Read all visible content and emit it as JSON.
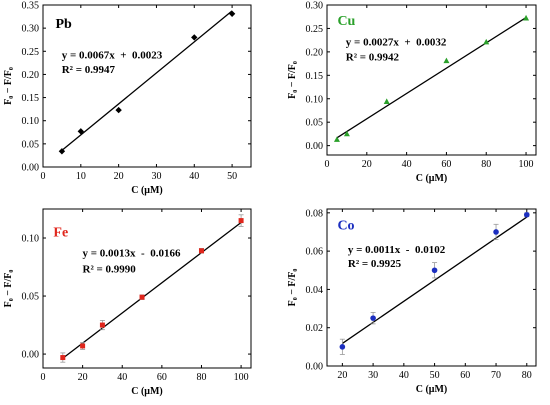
{
  "chart_data": [
    {
      "type": "scatter",
      "panel_label": "Pb",
      "label_color": "#000000",
      "marker": "diamond",
      "marker_color": "#000000",
      "equation": "y = 0.0067x  +  0.0023",
      "r2": "R² = 0.9947",
      "xlabel": "C (μM)",
      "ylabel": "F₀ − F/F₀",
      "xlim": [
        0,
        55
      ],
      "ylim": [
        0,
        0.35
      ],
      "xticks": [
        0,
        10,
        20,
        30,
        40,
        50
      ],
      "yticks": [
        0.0,
        0.05,
        0.1,
        0.15,
        0.2,
        0.25,
        0.3,
        0.35
      ],
      "ytick_labels": [
        "0.00",
        "0.05",
        "0.10",
        "0.15",
        "0.20",
        "0.25",
        "0.30",
        "0.35"
      ],
      "x": [
        5,
        10,
        20,
        40,
        50
      ],
      "y": [
        0.034,
        0.077,
        0.123,
        0.28,
        0.331
      ],
      "fit": {
        "slope": 0.0067,
        "intercept": 0.0023,
        "x_range": [
          5,
          50
        ]
      }
    },
    {
      "type": "scatter",
      "panel_label": "Cu",
      "label_color": "#2aa02a",
      "marker": "triangle",
      "marker_color": "#2aa02a",
      "equation": "y = 0.0027x  +  0.0032",
      "r2": "R² = 0.9942",
      "xlabel": "C (μM)",
      "ylabel": "F₀ − F/F₀",
      "xlim": [
        0,
        105
      ],
      "ylim": [
        -0.02,
        0.3
      ],
      "xticks": [
        0,
        20,
        40,
        60,
        80,
        100
      ],
      "yticks": [
        0.0,
        0.05,
        0.1,
        0.15,
        0.2,
        0.25,
        0.3
      ],
      "ytick_labels": [
        "0.00",
        "0.05",
        "0.10",
        "0.15",
        "0.20",
        "0.25",
        "0.30"
      ],
      "x": [
        5,
        10,
        30,
        60,
        80,
        100
      ],
      "y": [
        0.013,
        0.025,
        0.094,
        0.181,
        0.221,
        0.272
      ],
      "fit": {
        "slope": 0.0027,
        "intercept": 0.0032,
        "x_range": [
          5,
          100
        ]
      }
    },
    {
      "type": "scatter",
      "panel_label": "Fe",
      "label_color": "#e0261c",
      "marker": "square",
      "marker_color": "#e0261c",
      "equation": "y = 0.0013x  -  0.0166",
      "r2": "R² = 0.9990",
      "xlabel": "C (μM)",
      "ylabel": "F₀ − F/F₀",
      "xlim": [
        0,
        105
      ],
      "ylim": [
        -0.012,
        0.125
      ],
      "xticks": [
        0,
        20,
        40,
        60,
        80,
        100
      ],
      "yticks": [
        0.0,
        0.05,
        0.1
      ],
      "ytick_labels": [
        "0.00",
        "0.05",
        "0.10"
      ],
      "x": [
        10,
        20,
        30,
        50,
        80,
        100
      ],
      "y": [
        -0.003,
        0.007,
        0.025,
        0.049,
        0.089,
        0.115
      ],
      "err": [
        0.004,
        0.003,
        0.004,
        0.002,
        0.002,
        0.005
      ],
      "fit": {
        "slope": 0.0013,
        "intercept": -0.0166,
        "x_range": [
          10,
          100
        ]
      }
    },
    {
      "type": "scatter",
      "panel_label": "Co",
      "label_color": "#1c2fc0",
      "marker": "circle",
      "marker_color": "#1c2fc0",
      "equation": "y = 0.0011x  -  0.0102",
      "r2": "R² = 0.9925",
      "xlabel": "C (μM)",
      "ylabel": "F₀ − F/F₀",
      "xlim": [
        15,
        83
      ],
      "ylim": [
        0,
        0.082
      ],
      "xticks": [
        20,
        30,
        40,
        50,
        60,
        70,
        80
      ],
      "yticks": [
        0.0,
        0.02,
        0.04,
        0.06,
        0.08
      ],
      "ytick_labels": [
        "0.00",
        "0.02",
        "0.04",
        "0.06",
        "0.08"
      ],
      "x": [
        20,
        30,
        50,
        70,
        80
      ],
      "y": [
        0.01,
        0.025,
        0.05,
        0.07,
        0.079
      ],
      "err": [
        0.004,
        0.003,
        0.004,
        0.004,
        0.001
      ],
      "fit": {
        "slope": 0.0011,
        "intercept": -0.0102,
        "x_range": [
          20,
          80
        ]
      }
    }
  ]
}
